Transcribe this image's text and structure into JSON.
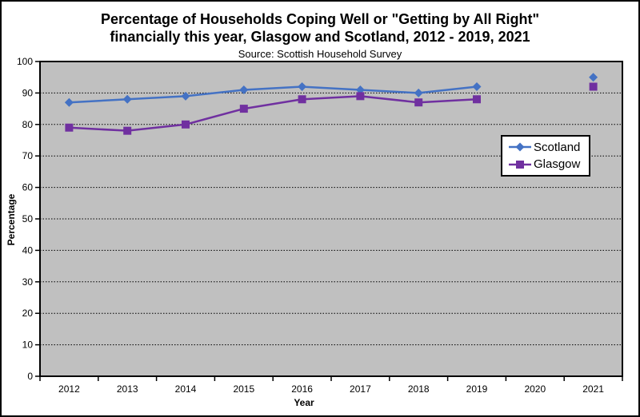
{
  "chart_data": {
    "type": "line",
    "title": "Percentage of Households Coping Well or \"Getting by All Right\" financially this year, Glasgow and Scotland, 2012 - 2019, 2021",
    "title_lines": [
      "Percentage of Households Coping Well or \"Getting by All Right\"",
      "financially this year, Glasgow and Scotland, 2012 - 2019, 2021"
    ],
    "subtitle": "Source: Scottish Household Survey",
    "xlabel": "Year",
    "ylabel": "Percentage",
    "categories": [
      "2012",
      "2013",
      "2014",
      "2015",
      "2016",
      "2017",
      "2018",
      "2019",
      "2020",
      "2021"
    ],
    "series": [
      {
        "name": "Scotland",
        "marker": "diamond",
        "color": "#4472C4",
        "values": [
          87,
          88,
          89,
          91,
          92,
          91,
          90,
          92,
          null,
          95
        ]
      },
      {
        "name": "Glasgow",
        "marker": "square",
        "color": "#7030A0",
        "values": [
          79,
          78,
          80,
          85,
          88,
          89,
          87,
          88,
          null,
          92
        ]
      }
    ],
    "ylim": [
      0,
      100
    ],
    "y_ticks": [
      0,
      10,
      20,
      30,
      40,
      50,
      60,
      70,
      80,
      90,
      100
    ],
    "grid": "horizontal-dotted",
    "legend_position": "right-middle",
    "colors": {
      "plot_background": "#C0C0C0",
      "gridline": "#000000",
      "axis": "#000000",
      "chart_background": "#FFFFFF"
    }
  }
}
